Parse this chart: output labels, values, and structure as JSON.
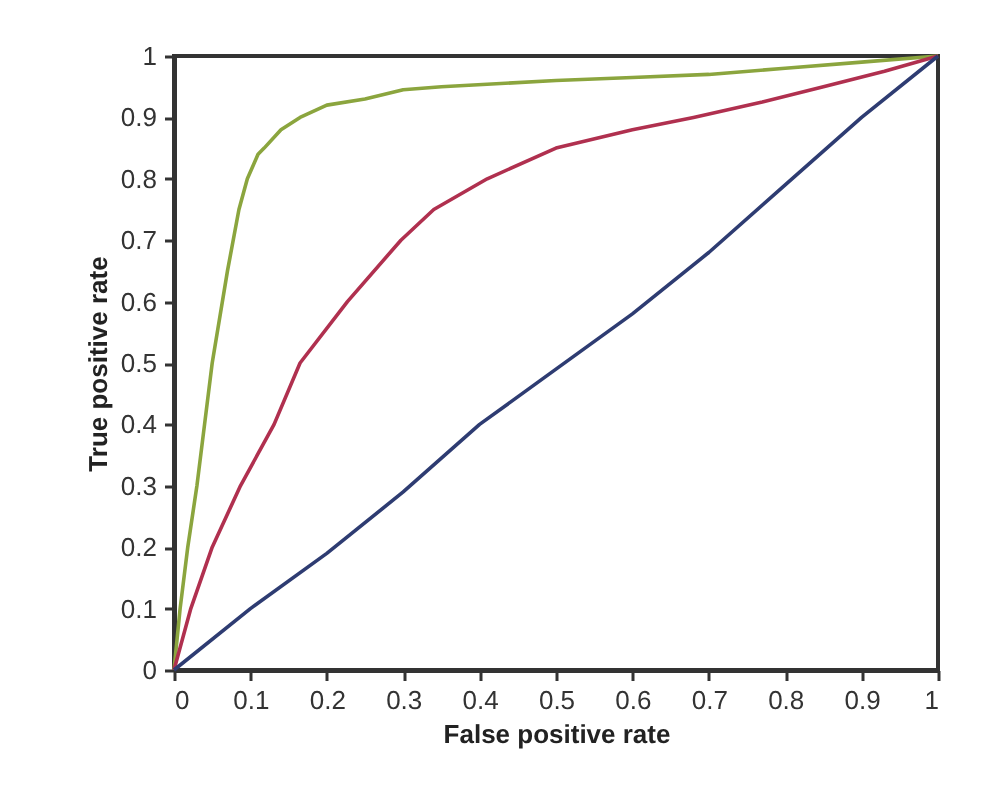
{
  "chart_data": {
    "type": "line",
    "xlabel": "False positive rate",
    "ylabel": "True positive rate",
    "xlim": [
      0,
      1
    ],
    "ylim": [
      0,
      1
    ],
    "xticks": [
      0,
      0.1,
      0.2,
      0.3,
      0.4,
      0.5,
      0.6,
      0.7,
      0.8,
      0.9,
      1
    ],
    "yticks": [
      0,
      0.1,
      0.2,
      0.3,
      0.4,
      0.5,
      0.6,
      0.7,
      0.8,
      0.9,
      1
    ],
    "grid": false,
    "legend": false,
    "marker": "none",
    "line_style": "solid",
    "series": [
      {
        "color": "#8ba53e",
        "x": [
          0,
          0.008,
          0.018,
          0.03,
          0.04,
          0.05,
          0.07,
          0.085,
          0.096,
          0.11,
          0.118,
          0.14,
          0.165,
          0.2,
          0.25,
          0.3,
          0.35,
          0.5,
          0.6,
          0.7,
          0.8,
          0.9,
          1
        ],
        "values": [
          0,
          0.1,
          0.2,
          0.3,
          0.4,
          0.5,
          0.65,
          0.75,
          0.8,
          0.84,
          0.85,
          0.88,
          0.9,
          0.92,
          0.93,
          0.945,
          0.95,
          0.96,
          0.965,
          0.97,
          0.98,
          0.99,
          1
        ]
      },
      {
        "color": "#b0304f",
        "x": [
          0,
          0.022,
          0.05,
          0.087,
          0.131,
          0.165,
          0.227,
          0.297,
          0.34,
          0.41,
          0.5,
          0.6,
          0.68,
          0.77,
          0.85,
          0.93,
          1
        ],
        "values": [
          0,
          0.1,
          0.2,
          0.3,
          0.4,
          0.5,
          0.6,
          0.7,
          0.75,
          0.8,
          0.85,
          0.88,
          0.9,
          0.925,
          0.95,
          0.975,
          1
        ]
      },
      {
        "color": "#2e3c72",
        "x": [
          0,
          0.1,
          0.2,
          0.3,
          0.4,
          0.5,
          0.6,
          0.7,
          0.8,
          0.9,
          1
        ],
        "values": [
          0,
          0.1,
          0.19,
          0.29,
          0.4,
          0.49,
          0.58,
          0.68,
          0.79,
          0.9,
          1
        ]
      }
    ]
  }
}
